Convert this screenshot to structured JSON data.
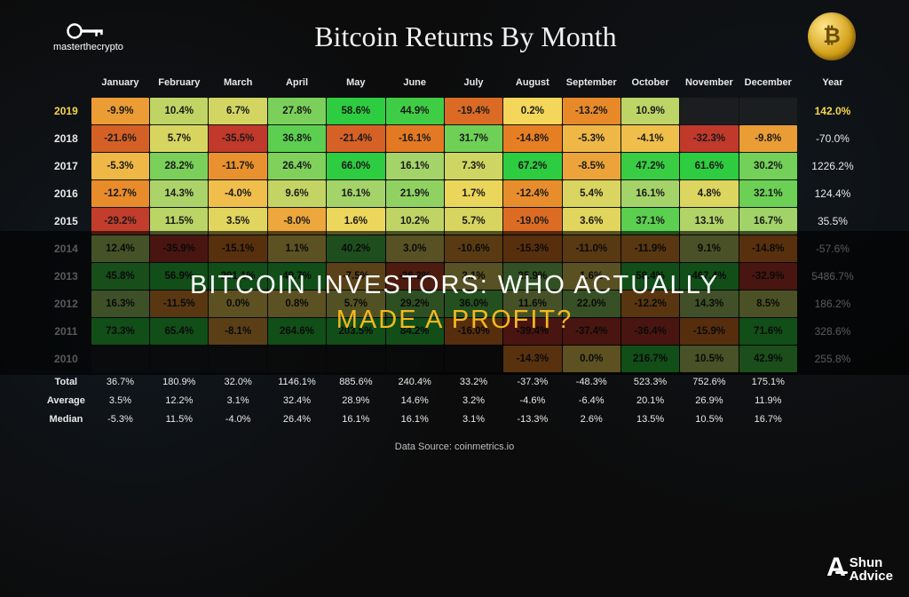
{
  "header": {
    "logo_text": "masterthecrypto",
    "title": "Bitcoin Returns By Month",
    "coin_glyph": "₿"
  },
  "table": {
    "type": "heatmap",
    "months": [
      "January",
      "February",
      "March",
      "April",
      "May",
      "June",
      "July",
      "August",
      "September",
      "October",
      "November",
      "December"
    ],
    "year_header": "Year",
    "color_scale": {
      "min_neg": "#c0392b",
      "mid_neg": "#e67e22",
      "neutral": "#f4d65a",
      "mid_pos": "#a8d36a",
      "max_pos": "#2ecc40"
    },
    "background_color": "#0c0c0c",
    "cell_font_size": 11.5,
    "header_font_size": 11,
    "rows": [
      {
        "year": "2019",
        "highlight": true,
        "cells": [
          "-9.9%",
          "10.4%",
          "6.7%",
          "27.8%",
          "58.6%",
          "44.9%",
          "-19.4%",
          "0.2%",
          "-13.2%",
          "10.9%",
          "",
          ""
        ],
        "vals": [
          -9.9,
          10.4,
          6.7,
          27.8,
          58.6,
          44.9,
          -19.4,
          0.2,
          -13.2,
          10.9,
          null,
          null
        ],
        "year_total": "142.0%"
      },
      {
        "year": "2018",
        "cells": [
          "-21.6%",
          "5.7%",
          "-35.5%",
          "36.8%",
          "-21.4%",
          "-16.1%",
          "31.7%",
          "-14.8%",
          "-5.3%",
          "-4.1%",
          "-32.3%",
          "-9.8%"
        ],
        "vals": [
          -21.6,
          5.7,
          -35.5,
          36.8,
          -21.4,
          -16.1,
          31.7,
          -14.8,
          -5.3,
          -4.1,
          -32.3,
          -9.8
        ],
        "year_total": "-70.0%"
      },
      {
        "year": "2017",
        "cells": [
          "-5.3%",
          "28.2%",
          "-11.7%",
          "26.4%",
          "66.0%",
          "16.1%",
          "7.3%",
          "67.2%",
          "-8.5%",
          "47.2%",
          "61.6%",
          "30.2%"
        ],
        "vals": [
          -5.3,
          28.2,
          -11.7,
          26.4,
          66.0,
          16.1,
          7.3,
          67.2,
          -8.5,
          47.2,
          61.6,
          30.2
        ],
        "year_total": "1226.2%"
      },
      {
        "year": "2016",
        "cells": [
          "-12.7%",
          "14.3%",
          "-4.0%",
          "9.6%",
          "16.1%",
          "21.9%",
          "1.7%",
          "-12.4%",
          "5.4%",
          "16.1%",
          "4.8%",
          "32.1%"
        ],
        "vals": [
          -12.7,
          14.3,
          -4.0,
          9.6,
          16.1,
          21.9,
          1.7,
          -12.4,
          5.4,
          16.1,
          4.8,
          32.1
        ],
        "year_total": "124.4%"
      },
      {
        "year": "2015",
        "cells": [
          "-29.2%",
          "11.5%",
          "3.5%",
          "-8.0%",
          "1.6%",
          "10.2%",
          "5.7%",
          "-19.0%",
          "3.6%",
          "37.1%",
          "13.1%",
          "16.7%"
        ],
        "vals": [
          -29.2,
          11.5,
          3.5,
          -8.0,
          1.6,
          10.2,
          5.7,
          -19.0,
          3.6,
          37.1,
          13.1,
          16.7
        ],
        "year_total": "35.5%"
      },
      {
        "year": "2014",
        "cells": [
          "12.4%",
          "-35.9%",
          "-15.1%",
          "1.1%",
          "40.2%",
          "3.0%",
          "-10.6%",
          "-15.3%",
          "-11.0%",
          "-11.9%",
          "9.1%",
          "-14.8%"
        ],
        "vals": [
          12.4,
          -35.9,
          -15.1,
          1.1,
          40.2,
          3.0,
          -10.6,
          -15.3,
          -11.0,
          -11.9,
          9.1,
          -14.8
        ],
        "year_total": "-57.6%"
      },
      {
        "year": "2013",
        "cells": [
          "45.8%",
          "56.9%",
          "201.1%",
          "49.7%",
          "-7.5%",
          "-26.2%",
          "3.1%",
          "25.9%",
          "1.6%",
          "58.4%",
          "467.4%",
          "-32.9%"
        ],
        "vals": [
          45.8,
          56.9,
          201.1,
          49.7,
          -7.5,
          -26.2,
          3.1,
          25.9,
          1.6,
          58.4,
          467.4,
          -32.9
        ],
        "year_total": "5486.7%"
      },
      {
        "year": "2012",
        "cells": [
          "16.3%",
          "-11.5%",
          "0.0%",
          "0.8%",
          "5.7%",
          "29.2%",
          "36.0%",
          "11.6%",
          "22.0%",
          "-12.2%",
          "14.3%",
          "8.5%"
        ],
        "vals": [
          16.3,
          -11.5,
          0.0,
          0.8,
          5.7,
          29.2,
          36.0,
          11.6,
          22.0,
          -12.2,
          14.3,
          8.5
        ],
        "year_total": "186.2%"
      },
      {
        "year": "2011",
        "cells": [
          "73.3%",
          "65.4%",
          "-8.1%",
          "264.6%",
          "203.5%",
          "84.2%",
          "-16.0%",
          "-39.4%",
          "-37.4%",
          "-36.4%",
          "-15.9%",
          "71.6%"
        ],
        "vals": [
          73.3,
          65.4,
          -8.1,
          264.6,
          203.5,
          84.2,
          -16.0,
          -39.4,
          -37.4,
          -36.4,
          -15.9,
          71.6
        ],
        "year_total": "328.6%"
      },
      {
        "year": "2010",
        "cells": [
          "",
          "",
          "",
          "",
          "",
          "",
          "",
          "-14.3%",
          "0.0%",
          "216.7%",
          "10.5%",
          "42.9%"
        ],
        "vals": [
          null,
          null,
          null,
          null,
          null,
          null,
          null,
          -14.3,
          0.0,
          216.7,
          10.5,
          42.9
        ],
        "year_total": "255.8%"
      }
    ],
    "summary": [
      {
        "label": "Total",
        "cells": [
          "36.7%",
          "180.9%",
          "32.0%",
          "1146.1%",
          "885.6%",
          "240.4%",
          "33.2%",
          "-37.3%",
          "-48.3%",
          "523.3%",
          "752.6%",
          "175.1%"
        ]
      },
      {
        "label": "Average",
        "cells": [
          "3.5%",
          "12.2%",
          "3.1%",
          "32.4%",
          "28.9%",
          "14.6%",
          "3.2%",
          "-4.6%",
          "-6.4%",
          "20.1%",
          "26.9%",
          "11.9%"
        ]
      },
      {
        "label": "Median",
        "cells": [
          "-5.3%",
          "11.5%",
          "-4.0%",
          "26.4%",
          "16.1%",
          "16.1%",
          "3.1%",
          "-13.3%",
          "2.6%",
          "13.5%",
          "10.5%",
          "16.7%"
        ]
      }
    ]
  },
  "footer": {
    "data_source": "Data Source: coinmetrics.io"
  },
  "overlay": {
    "line1": "BITCOIN INVESTORS: WHO ACTUALLY",
    "line2": "MADE A PROFIT?"
  },
  "corner_logo": {
    "brand1": "Shun",
    "brand2": "Advice"
  }
}
